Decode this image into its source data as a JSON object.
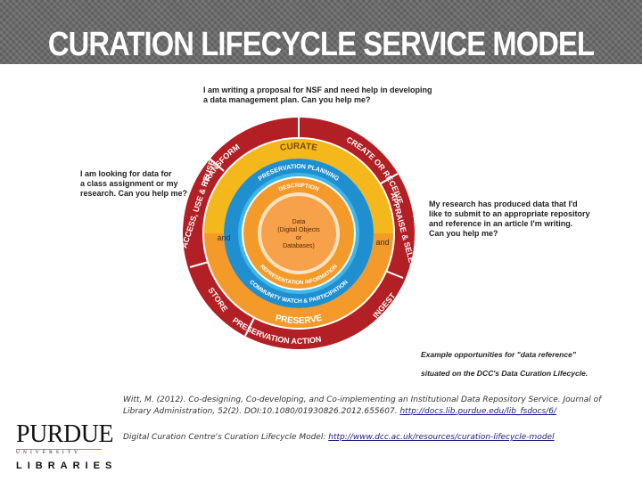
{
  "header": {
    "title": "CURATION LIFECYCLE SERVICE MODEL"
  },
  "callouts": {
    "top": "I am writing a proposal for NSF and need help in developing\na data management plan. Can you help me?",
    "left": "I am looking for data for\na class assignment or my\nresearch. Can you help me?",
    "right": "My research has produced data that I'd\nlike to submit to an appropriate repository\nand reference in an article I'm writing.\nCan you help me?",
    "example_line1": "Example opportunities for \"data reference\"",
    "example_line2": "situated on the DCC's Data Curation Lifecycle."
  },
  "diagram": {
    "outer_ring": {
      "labels": [
        "TRANSFORM",
        "CREATE OR RECEIVE",
        "APPRAISE & SELECT",
        "INGEST",
        "PRESERVATION ACTION",
        "STORE",
        "ACCESS, USE & REUSE"
      ]
    },
    "curate_label": "CURATE",
    "preserve_label": "PRESERVE",
    "and_left": "and",
    "and_right": "and",
    "blue_ring": {
      "top": "PRESERVATION PLANNING",
      "bottom": "COMMUNITY WATCH & PARTICIPATION"
    },
    "orange_ring": {
      "top": "DESCRIPTION",
      "bottom": "REPRESENTATION INFORMATION"
    },
    "center": {
      "line1": "Data",
      "line2": "(Digital Objects",
      "line3": "or",
      "line4": "Databases)"
    },
    "colors": {
      "outer": "#b21f24",
      "yellow": "#f5b81c",
      "orange": "#f39a2b",
      "blue": "#1f8fd0",
      "light_blue": "#3fb6e8",
      "center": "#f7a14a"
    }
  },
  "citations": {
    "witt_text": "Witt, M. (2012). Co-designing, Co-developing, and Co-implementing an Institutional Data Repository Service. Journal of Library Administration, 52(2). DOI:10.1080/01930826.2012.655607.",
    "witt_link": "http://docs.lib.purdue.edu/lib_fsdocs/6/",
    "dcc_text": "Digital Curation Centre's Curation Lifecycle Model:",
    "dcc_link": "http://www.dcc.ac.uk/resources/curation-lifecycle-model"
  },
  "logo": {
    "main": "PURDUE",
    "sub": "UNIVERSITY",
    "libraries": "LIBRARIES"
  }
}
